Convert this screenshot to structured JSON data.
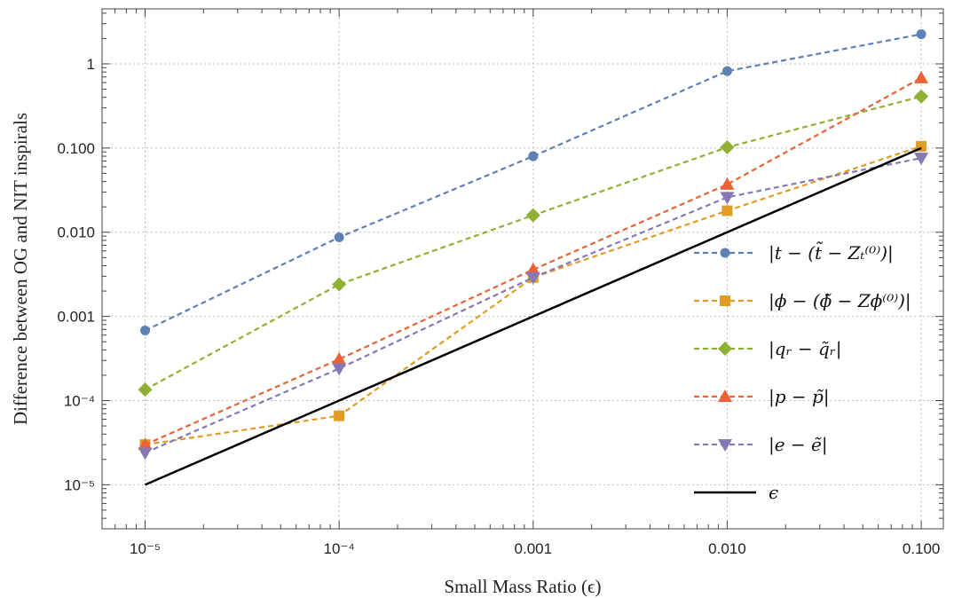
{
  "chart_data": {
    "type": "line",
    "title": "",
    "xlabel": "Small Mass Ratio (ϵ)",
    "ylabel": "Difference between OG and NIT inspirals",
    "xscale": "log",
    "yscale": "log",
    "xlim": [
      6e-06,
      0.13
    ],
    "ylim": [
      3e-06,
      4.5
    ],
    "grid": true,
    "legend_position": "right",
    "x": [
      1e-05,
      0.0001,
      0.001,
      0.01,
      0.1
    ],
    "x_ticks": [
      "10⁻⁵",
      "10⁻⁴",
      "0.001",
      "0.010",
      "0.100"
    ],
    "y_ticks": [
      "10⁻⁵",
      "10⁻⁴",
      "0.001",
      "0.010",
      "0.100",
      "1"
    ],
    "series": [
      {
        "name": "|t − (t̃ − Zₜ⁽⁰⁾)|",
        "values": [
          0.00068,
          0.0087,
          0.08,
          0.82,
          2.25
        ],
        "color": "#5e81b5",
        "marker": "circle",
        "dash": true
      },
      {
        "name": "|ϕ − (ϕ̃ − Zϕ⁽⁰⁾)|",
        "values": [
          3e-05,
          6.6e-05,
          0.0029,
          0.018,
          0.105
        ],
        "color": "#e19c24",
        "marker": "square",
        "dash": true
      },
      {
        "name": "|qᵣ − q̃ᵣ|",
        "values": [
          0.000135,
          0.0024,
          0.0159,
          0.102,
          0.41
        ],
        "color": "#8fb032",
        "marker": "diamond",
        "dash": true
      },
      {
        "name": "|p − p̃|",
        "values": [
          3e-05,
          0.00031,
          0.0036,
          0.037,
          0.68
        ],
        "color": "#eb6235",
        "marker": "triangle-up",
        "dash": true
      },
      {
        "name": "|e − ẽ|",
        "values": [
          2.4e-05,
          0.00024,
          0.0029,
          0.026,
          0.076
        ],
        "color": "#8778b3",
        "marker": "triangle-down",
        "dash": true
      },
      {
        "name": "ϵ",
        "values": [
          1e-05,
          0.0001,
          0.001,
          0.01,
          0.1
        ],
        "color": "#000000",
        "marker": "none",
        "dash": false
      }
    ]
  }
}
